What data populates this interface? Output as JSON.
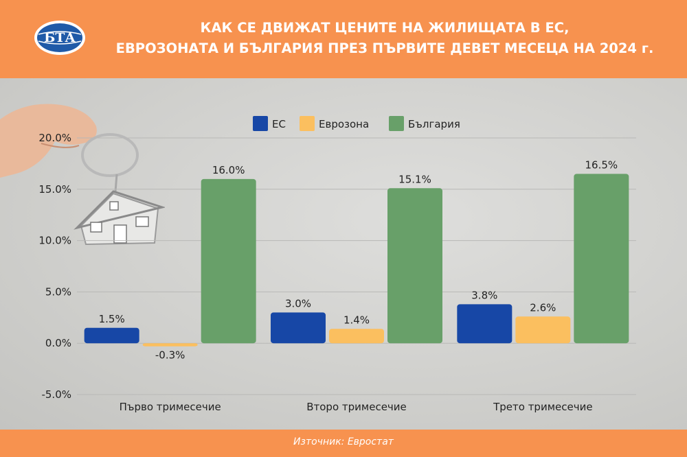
{
  "header": {
    "logo_text": "БТА",
    "title_line1": "КАК СЕ ДВИЖАТ ЦЕНИТЕ НА ЖИЛИЩАТА В ЕС,",
    "title_line2": "ЕВРОЗОНАТА И БЪЛГАРИЯ ПРЕЗ ПЪРВИТЕ ДЕВЕТ МЕСЕЦА НА 2024 г."
  },
  "footer": {
    "source": "Източник: Евростат"
  },
  "colors": {
    "header_bg": "#f7924f",
    "eu": "#1747a6",
    "eurozone": "#fbbf5f",
    "bulgaria": "#68a069"
  },
  "chart_data": {
    "type": "bar",
    "categories": [
      "Първо тримесечие",
      "Второ тримесечие",
      "Трето тримесечие"
    ],
    "series": [
      {
        "name": "ЕС",
        "values": [
          1.5,
          3.0,
          3.8
        ],
        "labels": [
          "1.5%",
          "3.0%",
          "3.8%"
        ],
        "color": "#1747a6"
      },
      {
        "name": "Еврозона",
        "values": [
          -0.3,
          1.4,
          2.6
        ],
        "labels": [
          "-0.3%",
          "1.4%",
          "2.6%"
        ],
        "color": "#fbbf5f"
      },
      {
        "name": "България",
        "values": [
          16.0,
          15.1,
          16.5
        ],
        "labels": [
          "16.0%",
          "15.1%",
          "16.5%"
        ],
        "color": "#68a069"
      }
    ],
    "yticks": [
      -5,
      0,
      5,
      10,
      15,
      20
    ],
    "ytick_labels": [
      "-5.0%",
      "0.0%",
      "5.0%",
      "10.0%",
      "15.0%",
      "20.0%"
    ],
    "ylim": [
      -5,
      20
    ],
    "grid": true,
    "legend": "top-center"
  }
}
